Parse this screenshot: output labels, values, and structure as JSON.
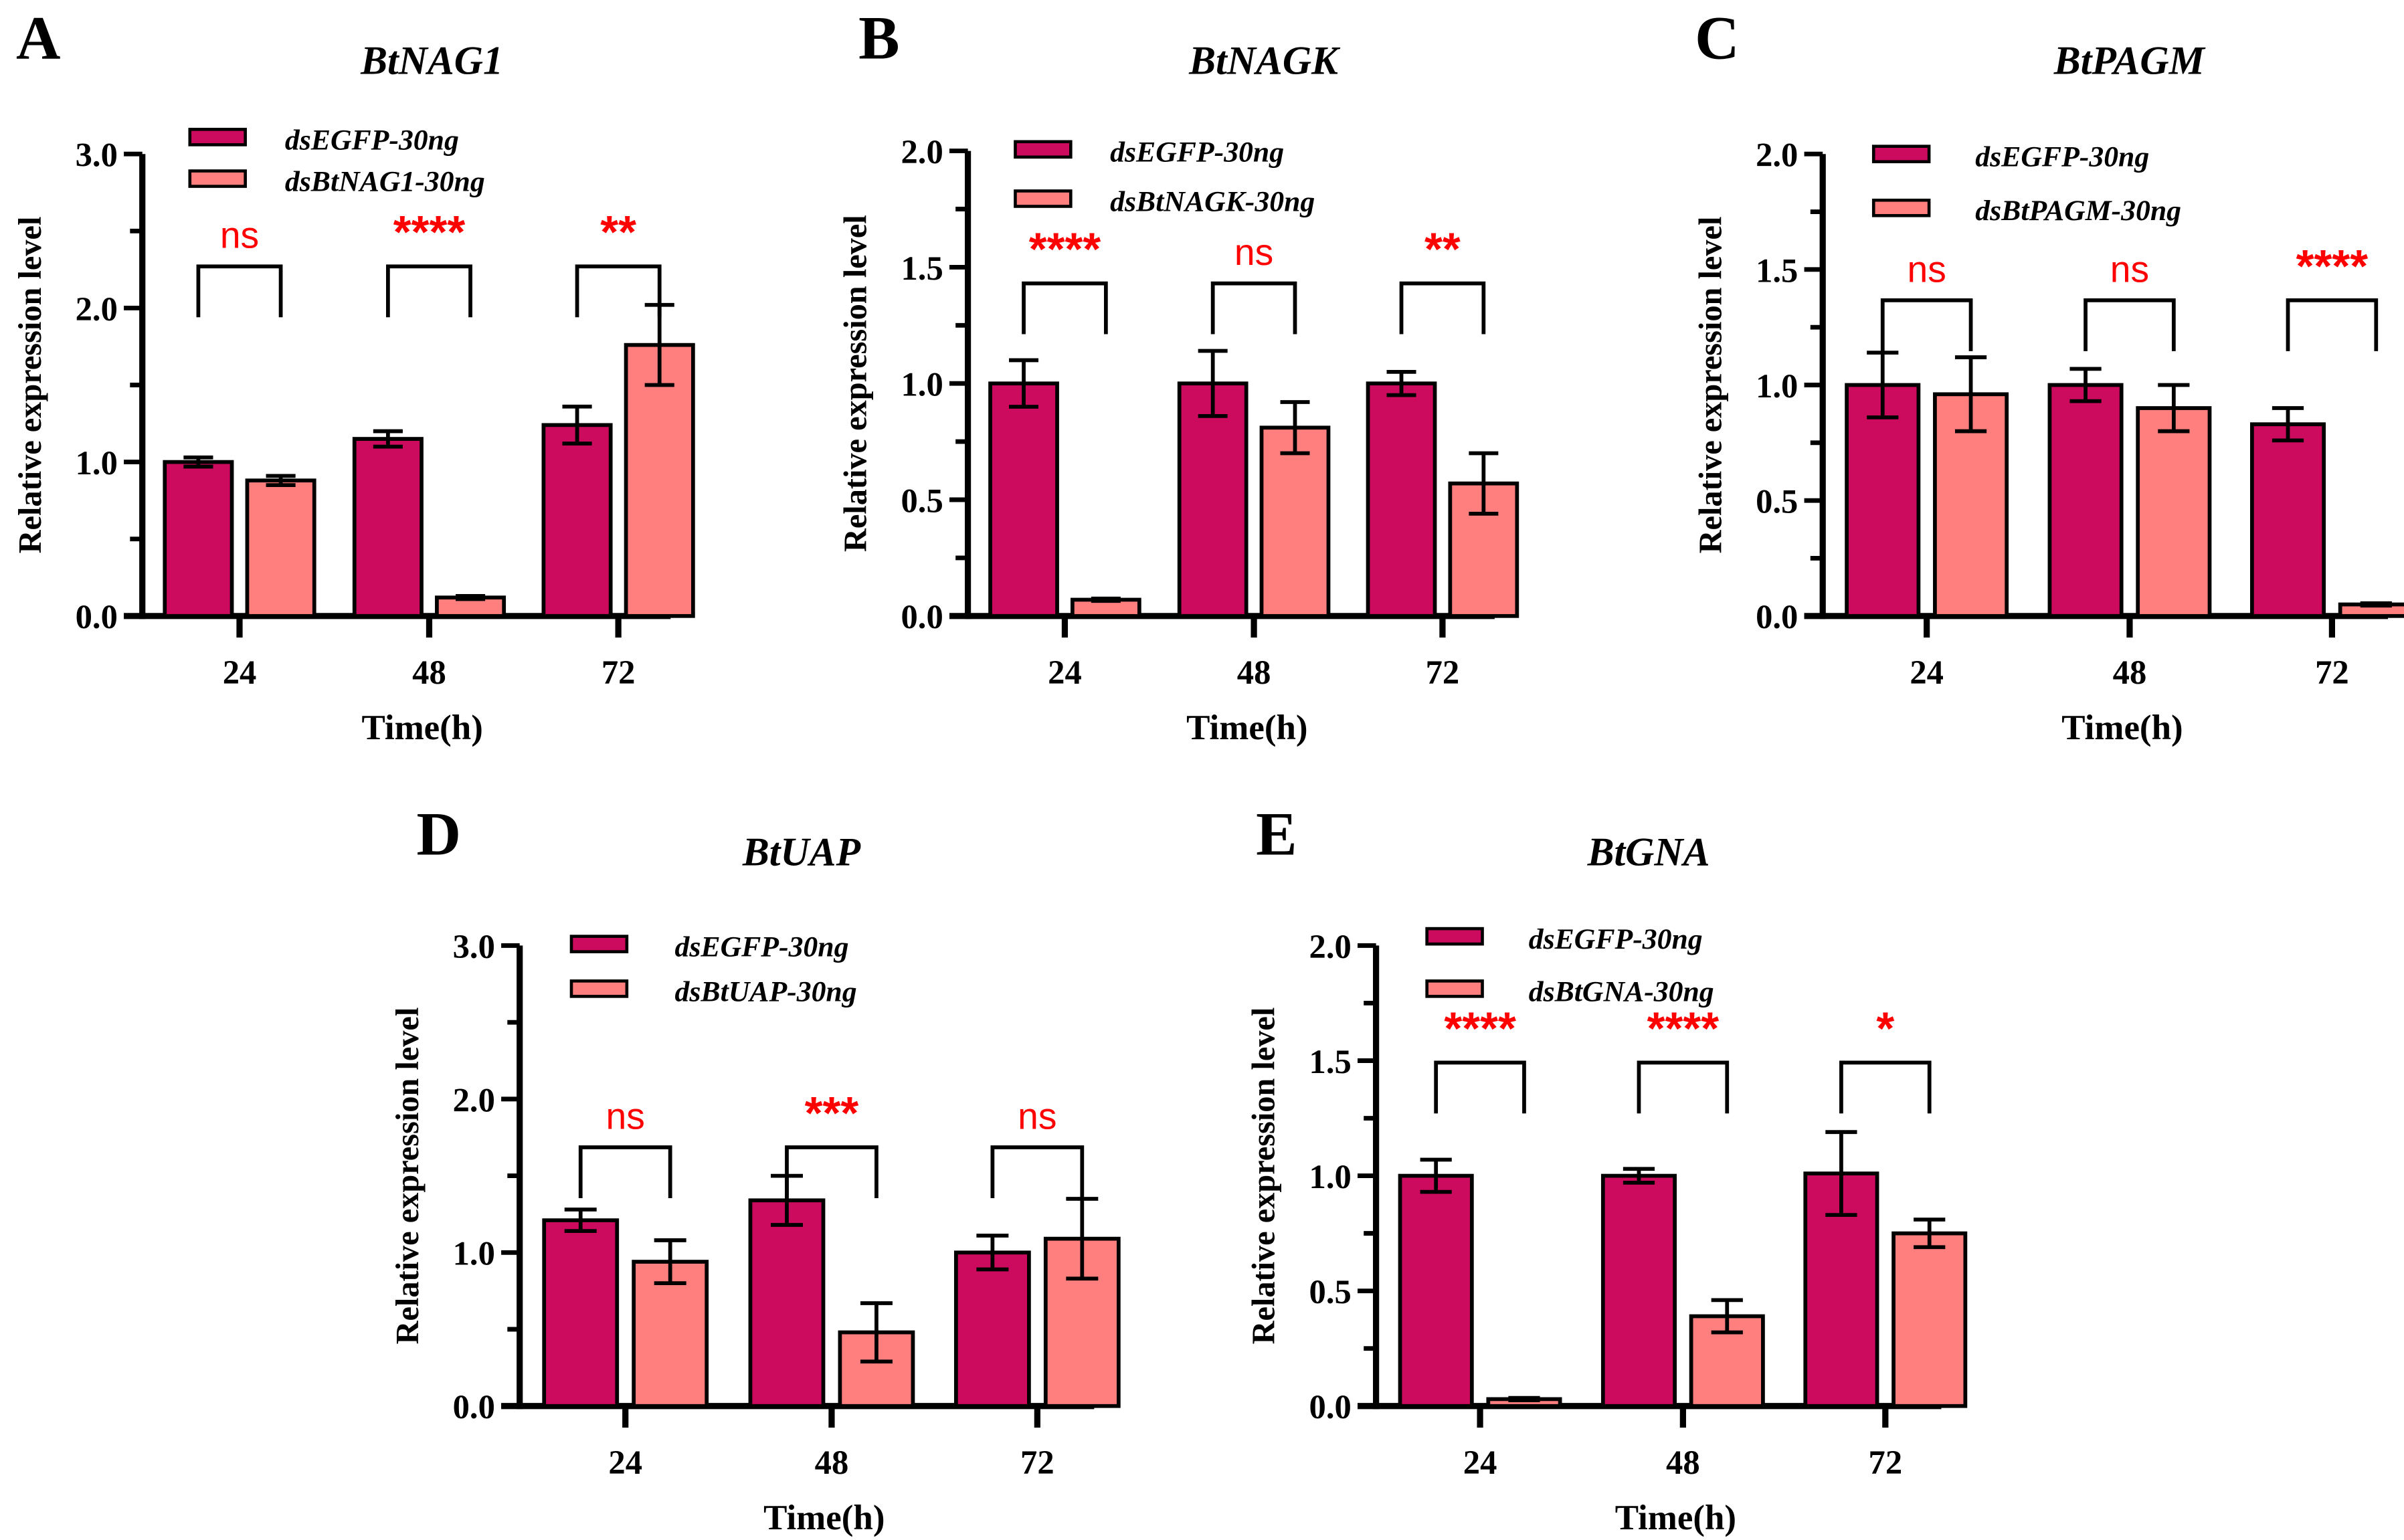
{
  "colors": {
    "control": "#cc0a5e",
    "treatment": "#ff7f7f",
    "sig": "#ff0000"
  },
  "chart_data": [
    {
      "type": "bar",
      "panel": "A",
      "title": "BtNAG1",
      "xlabel": "Time(h)",
      "ylabel": "Relative expression level",
      "categories": [
        "24",
        "48",
        "72"
      ],
      "ylim": [
        0,
        3
      ],
      "yticks": [
        "0.0",
        "1.0",
        "2.0",
        "3.0"
      ],
      "ytick_values": [
        0,
        1,
        2,
        3
      ],
      "legend": "top-left",
      "series": [
        {
          "name": "dsEGFP-30ng",
          "values": [
            1.0,
            1.15,
            1.24
          ],
          "errors": [
            0.03,
            0.05,
            0.12
          ]
        },
        {
          "name": "dsBtNAG1-30ng",
          "values": [
            0.88,
            0.12,
            1.76
          ],
          "errors": [
            0.03,
            0.01,
            0.26
          ]
        }
      ],
      "significance": [
        "ns",
        "****",
        "**"
      ]
    },
    {
      "type": "bar",
      "panel": "B",
      "title": "BtNAGK",
      "xlabel": "Time(h)",
      "ylabel": "Relative expression level",
      "categories": [
        "24",
        "48",
        "72"
      ],
      "ylim": [
        0,
        2
      ],
      "yticks": [
        "0.0",
        "0.5",
        "1.0",
        "1.5",
        "2.0"
      ],
      "ytick_values": [
        0,
        0.5,
        1,
        1.5,
        2
      ],
      "legend": "top-left",
      "series": [
        {
          "name": "dsEGFP-30ng",
          "values": [
            1.0,
            1.0,
            1.0
          ],
          "errors": [
            0.1,
            0.14,
            0.05
          ]
        },
        {
          "name": "dsBtNAGK-30ng",
          "values": [
            0.07,
            0.81,
            0.57
          ],
          "errors": [
            0.005,
            0.11,
            0.13
          ]
        }
      ],
      "significance": [
        "****",
        "ns",
        "**"
      ]
    },
    {
      "type": "bar",
      "panel": "C",
      "title": "BtPAGM",
      "xlabel": "Time(h)",
      "ylabel": "Relative expression level",
      "categories": [
        "24",
        "48",
        "72"
      ],
      "ylim": [
        0,
        2
      ],
      "yticks": [
        "0.0",
        "0.5",
        "1.0",
        "1.5",
        "2.0"
      ],
      "ytick_values": [
        0,
        0.5,
        1,
        1.5,
        2
      ],
      "legend": "top-left",
      "series": [
        {
          "name": "dsEGFP-30ng",
          "values": [
            1.0,
            1.0,
            0.83
          ],
          "errors": [
            0.14,
            0.07,
            0.07
          ]
        },
        {
          "name": "dsBtPAGM-30ng",
          "values": [
            0.96,
            0.9,
            0.05
          ],
          "errors": [
            0.16,
            0.1,
            0.005
          ]
        }
      ],
      "significance": [
        "ns",
        "ns",
        "****"
      ]
    },
    {
      "type": "bar",
      "panel": "D",
      "title": "BtUAP",
      "xlabel": "Time(h)",
      "ylabel": "Relative expression level",
      "categories": [
        "24",
        "48",
        "72"
      ],
      "ylim": [
        0,
        3
      ],
      "yticks": [
        "0.0",
        "1.0",
        "2.0",
        "3.0"
      ],
      "ytick_values": [
        0,
        1,
        2,
        3
      ],
      "legend": "top-left",
      "series": [
        {
          "name": "dsEGFP-30ng",
          "values": [
            1.21,
            1.34,
            1.0
          ],
          "errors": [
            0.07,
            0.16,
            0.11
          ]
        },
        {
          "name": "dsBtUAP-30ng",
          "values": [
            0.94,
            0.48,
            1.09
          ],
          "errors": [
            0.14,
            0.19,
            0.26
          ]
        }
      ],
      "significance": [
        "ns",
        "***",
        "ns"
      ]
    },
    {
      "type": "bar",
      "panel": "E",
      "title": "BtGNA",
      "xlabel": "Time(h)",
      "ylabel": "Relative expression level",
      "categories": [
        "24",
        "48",
        "72"
      ],
      "ylim": [
        0,
        2
      ],
      "yticks": [
        "0.0",
        "0.5",
        "1.0",
        "1.5",
        "2.0"
      ],
      "ytick_values": [
        0,
        0.5,
        1,
        1.5,
        2
      ],
      "legend": "top-left",
      "series": [
        {
          "name": "dsEGFP-30ng",
          "values": [
            1.0,
            1.0,
            1.01
          ],
          "errors": [
            0.07,
            0.03,
            0.18
          ]
        },
        {
          "name": "dsBtGNA-30ng",
          "values": [
            0.03,
            0.39,
            0.75
          ],
          "errors": [
            0.005,
            0.07,
            0.06
          ]
        }
      ],
      "significance": [
        "****",
        "****",
        "*"
      ]
    }
  ]
}
